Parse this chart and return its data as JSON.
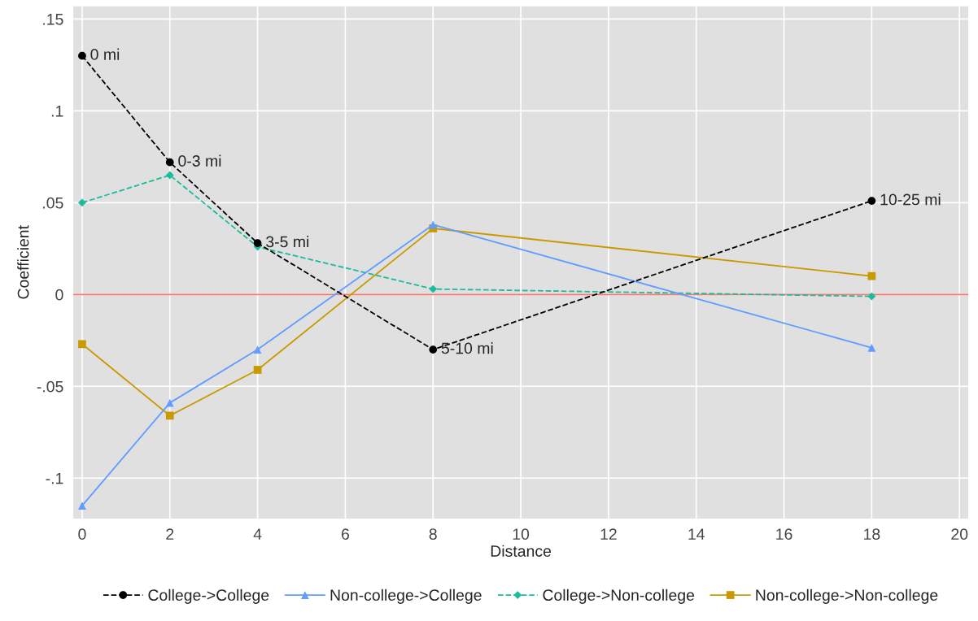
{
  "chart_data": {
    "type": "line",
    "xlabel": "Distance",
    "ylabel": "Coefficient",
    "x": [
      0,
      2,
      4,
      8,
      18
    ],
    "series": [
      {
        "name": "College->College",
        "color": "#000000",
        "marker": "circle",
        "line_style": "dashed",
        "values": [
          0.13,
          0.072,
          0.028,
          -0.03,
          0.051
        ]
      },
      {
        "name": "Non-college->College",
        "color": "#619cff",
        "marker": "triangle",
        "line_style": "solid",
        "values": [
          -0.115,
          -0.059,
          -0.03,
          0.038,
          -0.029
        ]
      },
      {
        "name": "College->Non-college",
        "color": "#1abc9c",
        "marker": "diamond",
        "line_style": "dashed",
        "values": [
          0.05,
          0.065,
          0.026,
          0.003,
          -0.001
        ]
      },
      {
        "name": "Non-college->Non-college",
        "color": "#c99a00",
        "marker": "square",
        "line_style": "solid",
        "values": [
          -0.027,
          -0.066,
          -0.041,
          0.036,
          0.01
        ]
      }
    ],
    "annotations": [
      {
        "text": "0 mi",
        "x": 0,
        "y": 0.13
      },
      {
        "text": "0-3 mi",
        "x": 2,
        "y": 0.072
      },
      {
        "text": "3-5 mi",
        "x": 4,
        "y": 0.028
      },
      {
        "text": "5-10 mi",
        "x": 8,
        "y": -0.03
      },
      {
        "text": "10-25 mi",
        "x": 18,
        "y": 0.051
      }
    ],
    "ref_lines": [
      {
        "axis": "y",
        "value": 0,
        "color": "#f8766d"
      }
    ],
    "xlim": [
      -0.2,
      20.2
    ],
    "xticks": [
      0,
      2,
      4,
      6,
      8,
      10,
      12,
      14,
      16,
      18,
      20
    ],
    "ylim": [
      -0.122,
      0.157
    ],
    "yticks": [
      {
        "value": -0.1,
        "label": "-.1"
      },
      {
        "value": -0.05,
        "label": "-.05"
      },
      {
        "value": 0,
        "label": "0"
      },
      {
        "value": 0.05,
        "label": ".05"
      },
      {
        "value": 0.1,
        "label": ".1"
      },
      {
        "value": 0.15,
        "label": ".15"
      }
    ],
    "grid": true,
    "legend": "bottom"
  }
}
